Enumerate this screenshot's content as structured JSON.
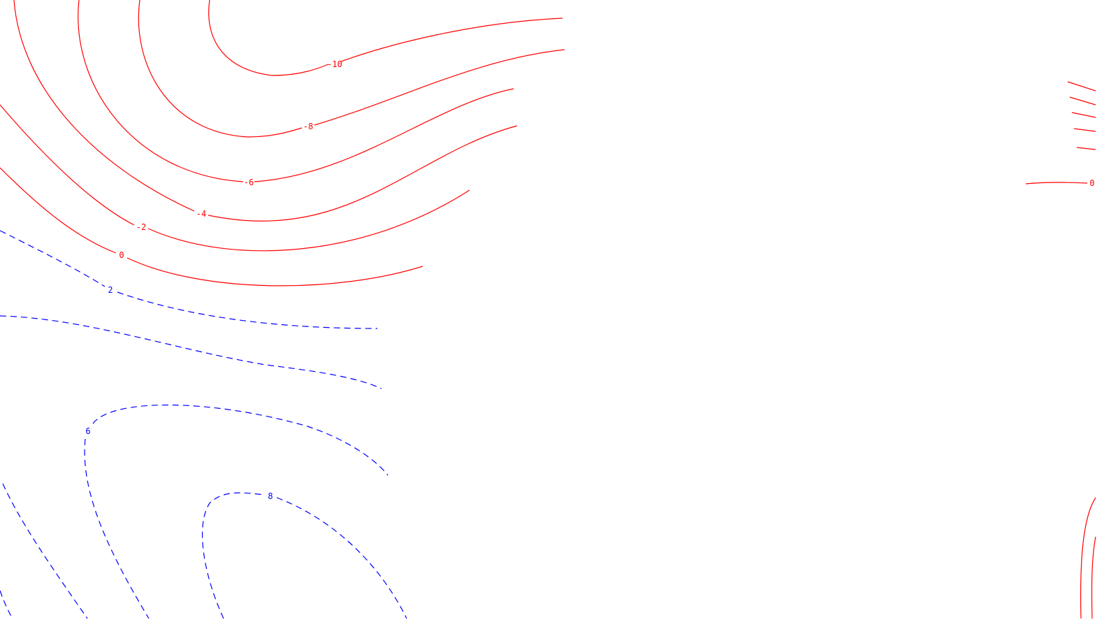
{
  "map": {
    "colors": {
      "negative_and_zero": "#ff0000",
      "positive": "#0000ff",
      "background": "#ffffff"
    },
    "line_styles": {
      "negative_and_zero": "solid",
      "positive": "dashed"
    },
    "labels": [
      "-10",
      "-8",
      "-6",
      "-4",
      "-2",
      "0",
      "2",
      "6",
      "8"
    ],
    "right_edge_label": "0"
  }
}
